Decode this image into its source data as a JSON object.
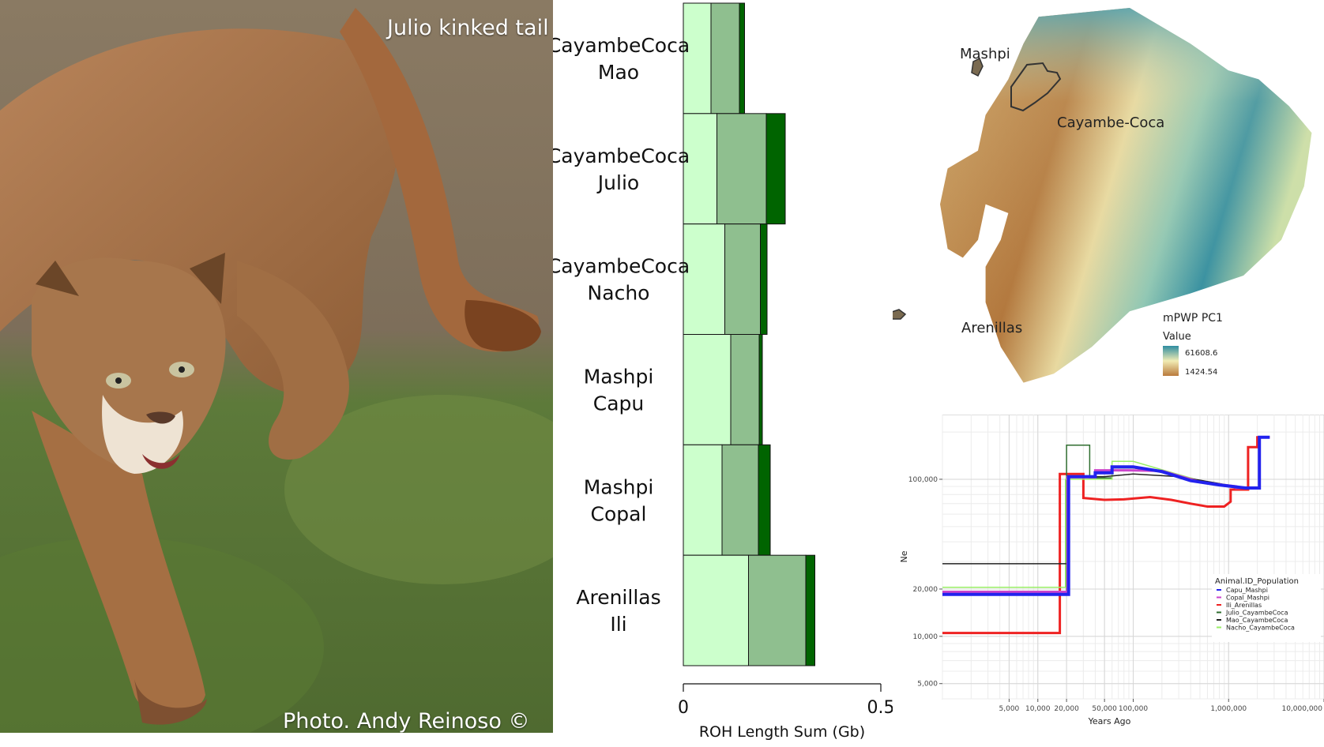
{
  "photo": {
    "title": "Julio kinked tail",
    "credit": "Photo. Andy Reinoso  ©"
  },
  "chart_data": [
    {
      "type": "bar",
      "orientation": "horizontal",
      "stacked": true,
      "categories": [
        [
          "CayambeCoca",
          "Mao"
        ],
        [
          "CayambeCoca",
          "Julio"
        ],
        [
          "CayambeCoca",
          "Nacho"
        ],
        [
          "Mashpi",
          "Capu"
        ],
        [
          "Mashpi",
          "Copal"
        ],
        [
          "Arenillas",
          "Ili"
        ]
      ],
      "series": [
        {
          "color": "#ccffcc",
          "values": [
            0.07,
            0.085,
            0.105,
            0.12,
            0.098,
            0.165
          ]
        },
        {
          "color": "#8fbf8f",
          "values": [
            0.072,
            0.125,
            0.09,
            0.072,
            0.092,
            0.145
          ]
        },
        {
          "color": "#006400",
          "values": [
            0.013,
            0.048,
            0.017,
            0.008,
            0.03,
            0.023
          ]
        }
      ],
      "xlabel": "ROH Length Sum (Gb)",
      "xticks": [
        "0",
        "0.5"
      ],
      "xlim": [
        0,
        0.5
      ]
    },
    {
      "type": "heatmap",
      "subtype": "map",
      "legend": {
        "title": "mPWP PC1",
        "subtitle": "Value",
        "max_label": "61608.6",
        "min_label": "1424.54",
        "colors": [
          "#2e8ca0",
          "#f1ecb4",
          "#b97a3c"
        ]
      },
      "locations": [
        "Mashpi",
        "Cayambe-Coca",
        "Arenillas"
      ]
    },
    {
      "type": "line",
      "xlabel": "Years Ago",
      "ylabel": "Ne",
      "xscale": "log",
      "yscale": "log",
      "xlim": [
        1000,
        10000000
      ],
      "ylim": [
        4000,
        280000
      ],
      "xticks": [
        {
          "v": 5000,
          "label": "5,000"
        },
        {
          "v": 10000,
          "label": "10,000"
        },
        {
          "v": 20000,
          "label": "20,000"
        },
        {
          "v": 50000,
          "label": "50,000"
        },
        {
          "v": 100000,
          "label": "100,000"
        },
        {
          "v": 1000000,
          "label": "1,000,000"
        },
        {
          "v": 10000000,
          "label": "10,000,000"
        }
      ],
      "yticks": [
        {
          "v": 5000,
          "label": "5,000"
        },
        {
          "v": 10000,
          "label": "10,000"
        },
        {
          "v": 20000,
          "label": "20,000"
        },
        {
          "v": 100000,
          "label": "100,000"
        }
      ],
      "legend_title": "Animal.ID_Population",
      "legend_position": "right",
      "series": [
        {
          "name": "Ili_Arenillas",
          "color": "#ee2222",
          "width": 3,
          "points": [
            [
              1000,
              10500
            ],
            [
              17000,
              10500
            ],
            [
              17000,
              108000
            ],
            [
              24000,
              108000
            ],
            [
              24000,
              108000
            ],
            [
              30000,
              108000
            ],
            [
              30000,
              76000
            ],
            [
              50000,
              74000
            ],
            [
              80000,
              74500
            ],
            [
              150000,
              77000
            ],
            [
              250000,
              74000
            ],
            [
              400000,
              70000
            ],
            [
              600000,
              67000
            ],
            [
              900000,
              67000
            ],
            [
              1050000,
              72000
            ],
            [
              1050000,
              86000
            ],
            [
              1600000,
              86000
            ],
            [
              1600000,
              160000
            ],
            [
              2000000,
              160000
            ],
            [
              2000000,
              185000
            ],
            [
              2700000,
              185000
            ]
          ]
        },
        {
          "name": "Julio_CayambeCoca",
          "color": "#2f6e2f",
          "width": 1.5,
          "points": [
            [
              20000,
              18200
            ],
            [
              20000,
              165000
            ],
            [
              35000,
              165000
            ],
            [
              35000,
              102000
            ],
            [
              60000,
              102000
            ],
            [
              60000,
              118000
            ],
            [
              100000,
              118000
            ],
            [
              180000,
              112000
            ],
            [
              400000,
              100000
            ],
            [
              900000,
              92000
            ]
          ]
        },
        {
          "name": "Nacho_CayambeCoca",
          "color": "#99ee66",
          "width": 1.5,
          "points": [
            [
              1000,
              20500
            ],
            [
              19500,
              20500
            ],
            [
              19500,
              100000
            ],
            [
              60000,
              100000
            ],
            [
              60000,
              130000
            ],
            [
              100000,
              130000
            ],
            [
              200000,
              115000
            ],
            [
              500000,
              98000
            ],
            [
              1000000,
              92000
            ]
          ]
        },
        {
          "name": "Mao_CayambeCoca",
          "color": "#222222",
          "width": 1.5,
          "points": [
            [
              1000,
              29000
            ],
            [
              21000,
              29000
            ],
            [
              21000,
              104000
            ],
            [
              50000,
              104000
            ],
            [
              100000,
              108000
            ],
            [
              300000,
              104000
            ],
            [
              800000,
              94000
            ],
            [
              1100000,
              90000
            ]
          ]
        },
        {
          "name": "Copal_Mashpi",
          "color": "#cc44cc",
          "width": 3,
          "points": [
            [
              1000,
              19200
            ],
            [
              20500,
              19200
            ],
            [
              20500,
              103000
            ],
            [
              40000,
              103000
            ],
            [
              40000,
              114000
            ],
            [
              90000,
              114000
            ],
            [
              200000,
              113000
            ],
            [
              500000,
              96000
            ],
            [
              1200000,
              90000
            ],
            [
              1200000,
              88000
            ],
            [
              1500000,
              88000
            ]
          ]
        },
        {
          "name": "Capu_Mashpi",
          "color": "#2222ee",
          "width": 4,
          "points": [
            [
              1000,
              18500
            ],
            [
              21000,
              18500
            ],
            [
              21000,
              104000
            ],
            [
              40000,
              104000
            ],
            [
              40000,
              110000
            ],
            [
              60000,
              110000
            ],
            [
              60000,
              120000
            ],
            [
              100000,
              120000
            ],
            [
              200000,
              112000
            ],
            [
              400000,
              98000
            ],
            [
              800000,
              92000
            ],
            [
              1500000,
              88000
            ],
            [
              1500000,
              88000
            ],
            [
              2100000,
              88000
            ],
            [
              2100000,
              185000
            ],
            [
              2700000,
              185000
            ]
          ]
        }
      ]
    }
  ]
}
